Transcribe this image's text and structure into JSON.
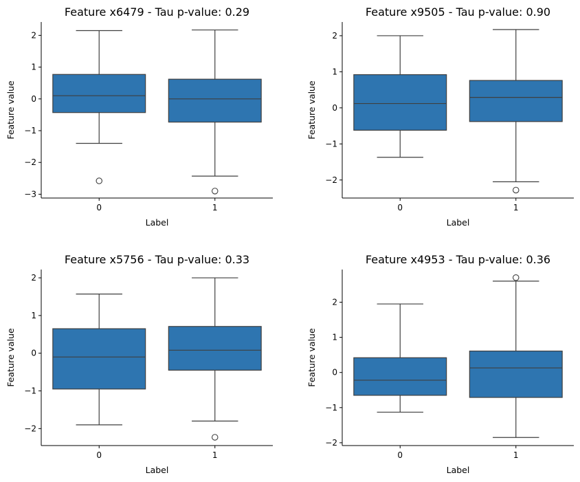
{
  "chart_data": [
    {
      "type": "box",
      "title": "Feature x6479 - Tau p-value: 0.29",
      "xlabel": "Label",
      "ylabel": "Feature value",
      "categories": [
        "0",
        "1"
      ],
      "ylim": [
        -3.12,
        2.42
      ],
      "yticks": [
        2,
        1,
        0,
        -1,
        -2,
        -3
      ],
      "boxes": [
        {
          "whislo": -1.4,
          "q1": -0.43,
          "med": 0.1,
          "q3": 0.77,
          "whishi": 2.15,
          "fliers": [
            -2.58
          ]
        },
        {
          "whislo": -2.43,
          "q1": -0.73,
          "med": 0.0,
          "q3": 0.62,
          "whishi": 2.17,
          "fliers": [
            -2.9
          ]
        }
      ]
    },
    {
      "type": "box",
      "title": "Feature x9505 - Tau p-value: 0.90",
      "xlabel": "Label",
      "ylabel": "Feature value",
      "categories": [
        "0",
        "1"
      ],
      "ylim": [
        -2.5,
        2.38
      ],
      "yticks": [
        2,
        1,
        0,
        -1,
        -2
      ],
      "boxes": [
        {
          "whislo": -1.37,
          "q1": -0.62,
          "med": 0.12,
          "q3": 0.92,
          "whishi": 2.0,
          "fliers": []
        },
        {
          "whislo": -2.05,
          "q1": -0.38,
          "med": 0.29,
          "q3": 0.76,
          "whishi": 2.17,
          "fliers": [
            -2.28
          ]
        }
      ]
    },
    {
      "type": "box",
      "title": "Feature x5756 - Tau p-value: 0.33",
      "xlabel": "Label",
      "ylabel": "Feature value",
      "categories": [
        "0",
        "1"
      ],
      "ylim": [
        -2.45,
        2.22
      ],
      "yticks": [
        2,
        1,
        0,
        -1,
        -2
      ],
      "boxes": [
        {
          "whislo": -1.9,
          "q1": -0.95,
          "med": -0.1,
          "q3": 0.65,
          "whishi": 1.57,
          "fliers": []
        },
        {
          "whislo": -1.8,
          "q1": -0.45,
          "med": 0.08,
          "q3": 0.71,
          "whishi": 2.0,
          "fliers": [
            -2.23
          ]
        }
      ]
    },
    {
      "type": "box",
      "title": "Feature x4953 - Tau p-value: 0.36",
      "xlabel": "Label",
      "ylabel": "Feature value",
      "categories": [
        "0",
        "1"
      ],
      "ylim": [
        -2.08,
        2.93
      ],
      "yticks": [
        2,
        1,
        0,
        -1,
        -2
      ],
      "boxes": [
        {
          "whislo": -1.13,
          "q1": -0.65,
          "med": -0.22,
          "q3": 0.42,
          "whishi": 1.95,
          "fliers": []
        },
        {
          "whislo": -1.85,
          "q1": -0.71,
          "med": 0.13,
          "q3": 0.61,
          "whishi": 2.6,
          "fliers": [
            2.7
          ]
        }
      ]
    }
  ]
}
